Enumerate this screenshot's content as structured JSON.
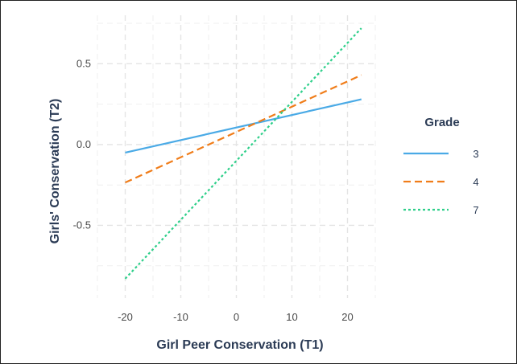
{
  "chart_data": {
    "type": "line",
    "xlabel": "Girl Peer Conservation (T1)",
    "ylabel": "Girls' Conservation (T2)",
    "xlim": [
      -25,
      25
    ],
    "ylim": [
      -0.95,
      0.8
    ],
    "xticks": [
      -20,
      -10,
      0,
      10,
      20
    ],
    "xtick_labels": [
      "-20",
      "-10",
      "0",
      "10",
      "20"
    ],
    "yticks": [
      -0.5,
      0.0,
      0.5
    ],
    "ytick_labels": [
      "-0.5",
      "0.0",
      "0.5"
    ],
    "grid": true,
    "legend": {
      "title": "Grade",
      "placement": "right"
    },
    "series": [
      {
        "name": "3",
        "color": "#4aaae6",
        "style": "solid",
        "x": [
          -20,
          22.5
        ],
        "y": [
          -0.05,
          0.28
        ]
      },
      {
        "name": "4",
        "color": "#f07d1a",
        "style": "dashed",
        "x": [
          -20,
          22.5
        ],
        "y": [
          -0.235,
          0.43
        ]
      },
      {
        "name": "7",
        "color": "#2ecf8a",
        "style": "dotted",
        "x": [
          -20,
          22.5
        ],
        "y": [
          -0.83,
          0.72
        ]
      }
    ]
  }
}
